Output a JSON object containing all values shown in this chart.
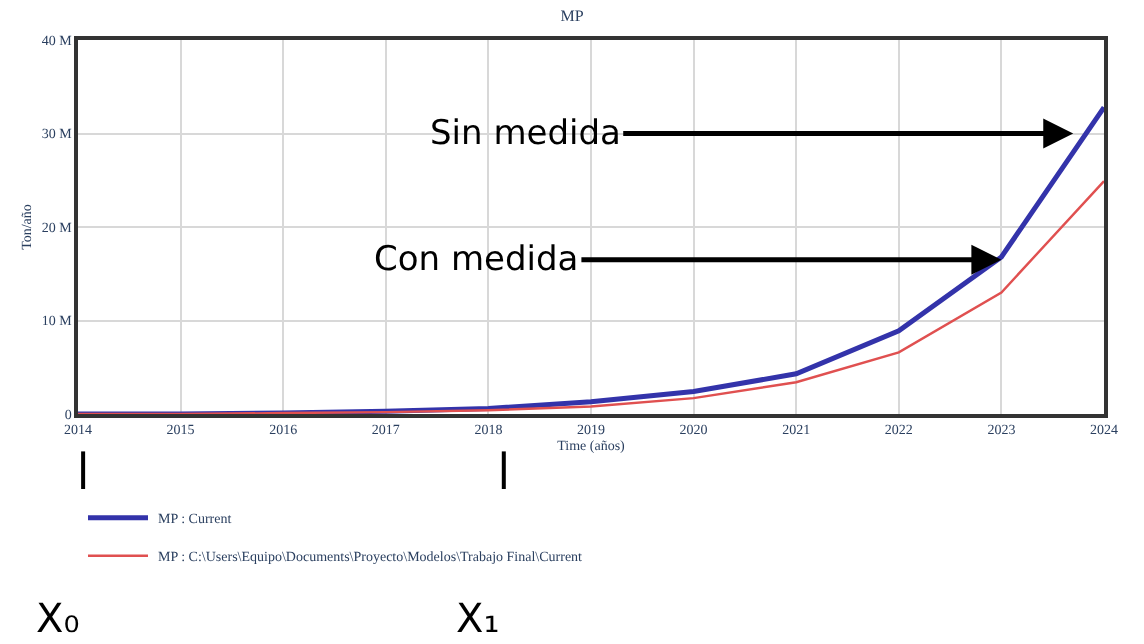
{
  "chart_data": {
    "type": "line",
    "title": "MP",
    "xlabel": "Time (años)",
    "ylabel": "Ton/año",
    "x": [
      2014,
      2015,
      2016,
      2017,
      2018,
      2019,
      2020,
      2021,
      2022,
      2023,
      2024
    ],
    "series": [
      {
        "name": "MP : Current",
        "color": "#3333aa",
        "values": [
          0,
          0,
          0.1,
          0.3,
          0.6,
          1.3,
          2.4,
          4.3,
          8.9,
          16.8,
          32.8
        ]
      },
      {
        "name": "MP : C:\\Users\\Equipo\\Documents\\Proyecto\\Modelos\\Trabajo Final\\Current",
        "color": "#e05050",
        "values": [
          0,
          0,
          0.1,
          0.2,
          0.4,
          0.8,
          1.7,
          3.4,
          6.6,
          13.0,
          24.9
        ]
      }
    ],
    "xlim": [
      2014,
      2024
    ],
    "xticks": [
      2014,
      2015,
      2016,
      2017,
      2018,
      2019,
      2020,
      2021,
      2022,
      2023,
      2024
    ],
    "ylim": [
      0,
      40
    ],
    "yticks": [
      {
        "value": 0,
        "label": "0"
      },
      {
        "value": 10,
        "label": "10 M"
      },
      {
        "value": 20,
        "label": "20 M"
      },
      {
        "value": 30,
        "label": "30 M"
      },
      {
        "value": 40,
        "label": "40 M"
      }
    ],
    "grid": true,
    "legend": "bottom",
    "marker": "none",
    "line_style": "solid",
    "annotations": [
      {
        "text": "Sin medida",
        "x": 2023.7,
        "y": 30
      },
      {
        "text": "Con medida",
        "x": 2023,
        "y": 16.5
      }
    ],
    "ref_lines": [
      {
        "axis": "x",
        "value": 2014.05,
        "label": "X₀",
        "color": "#000000"
      },
      {
        "axis": "x",
        "value": 2018.15,
        "label": "X₁",
        "color": "#000000"
      }
    ]
  }
}
